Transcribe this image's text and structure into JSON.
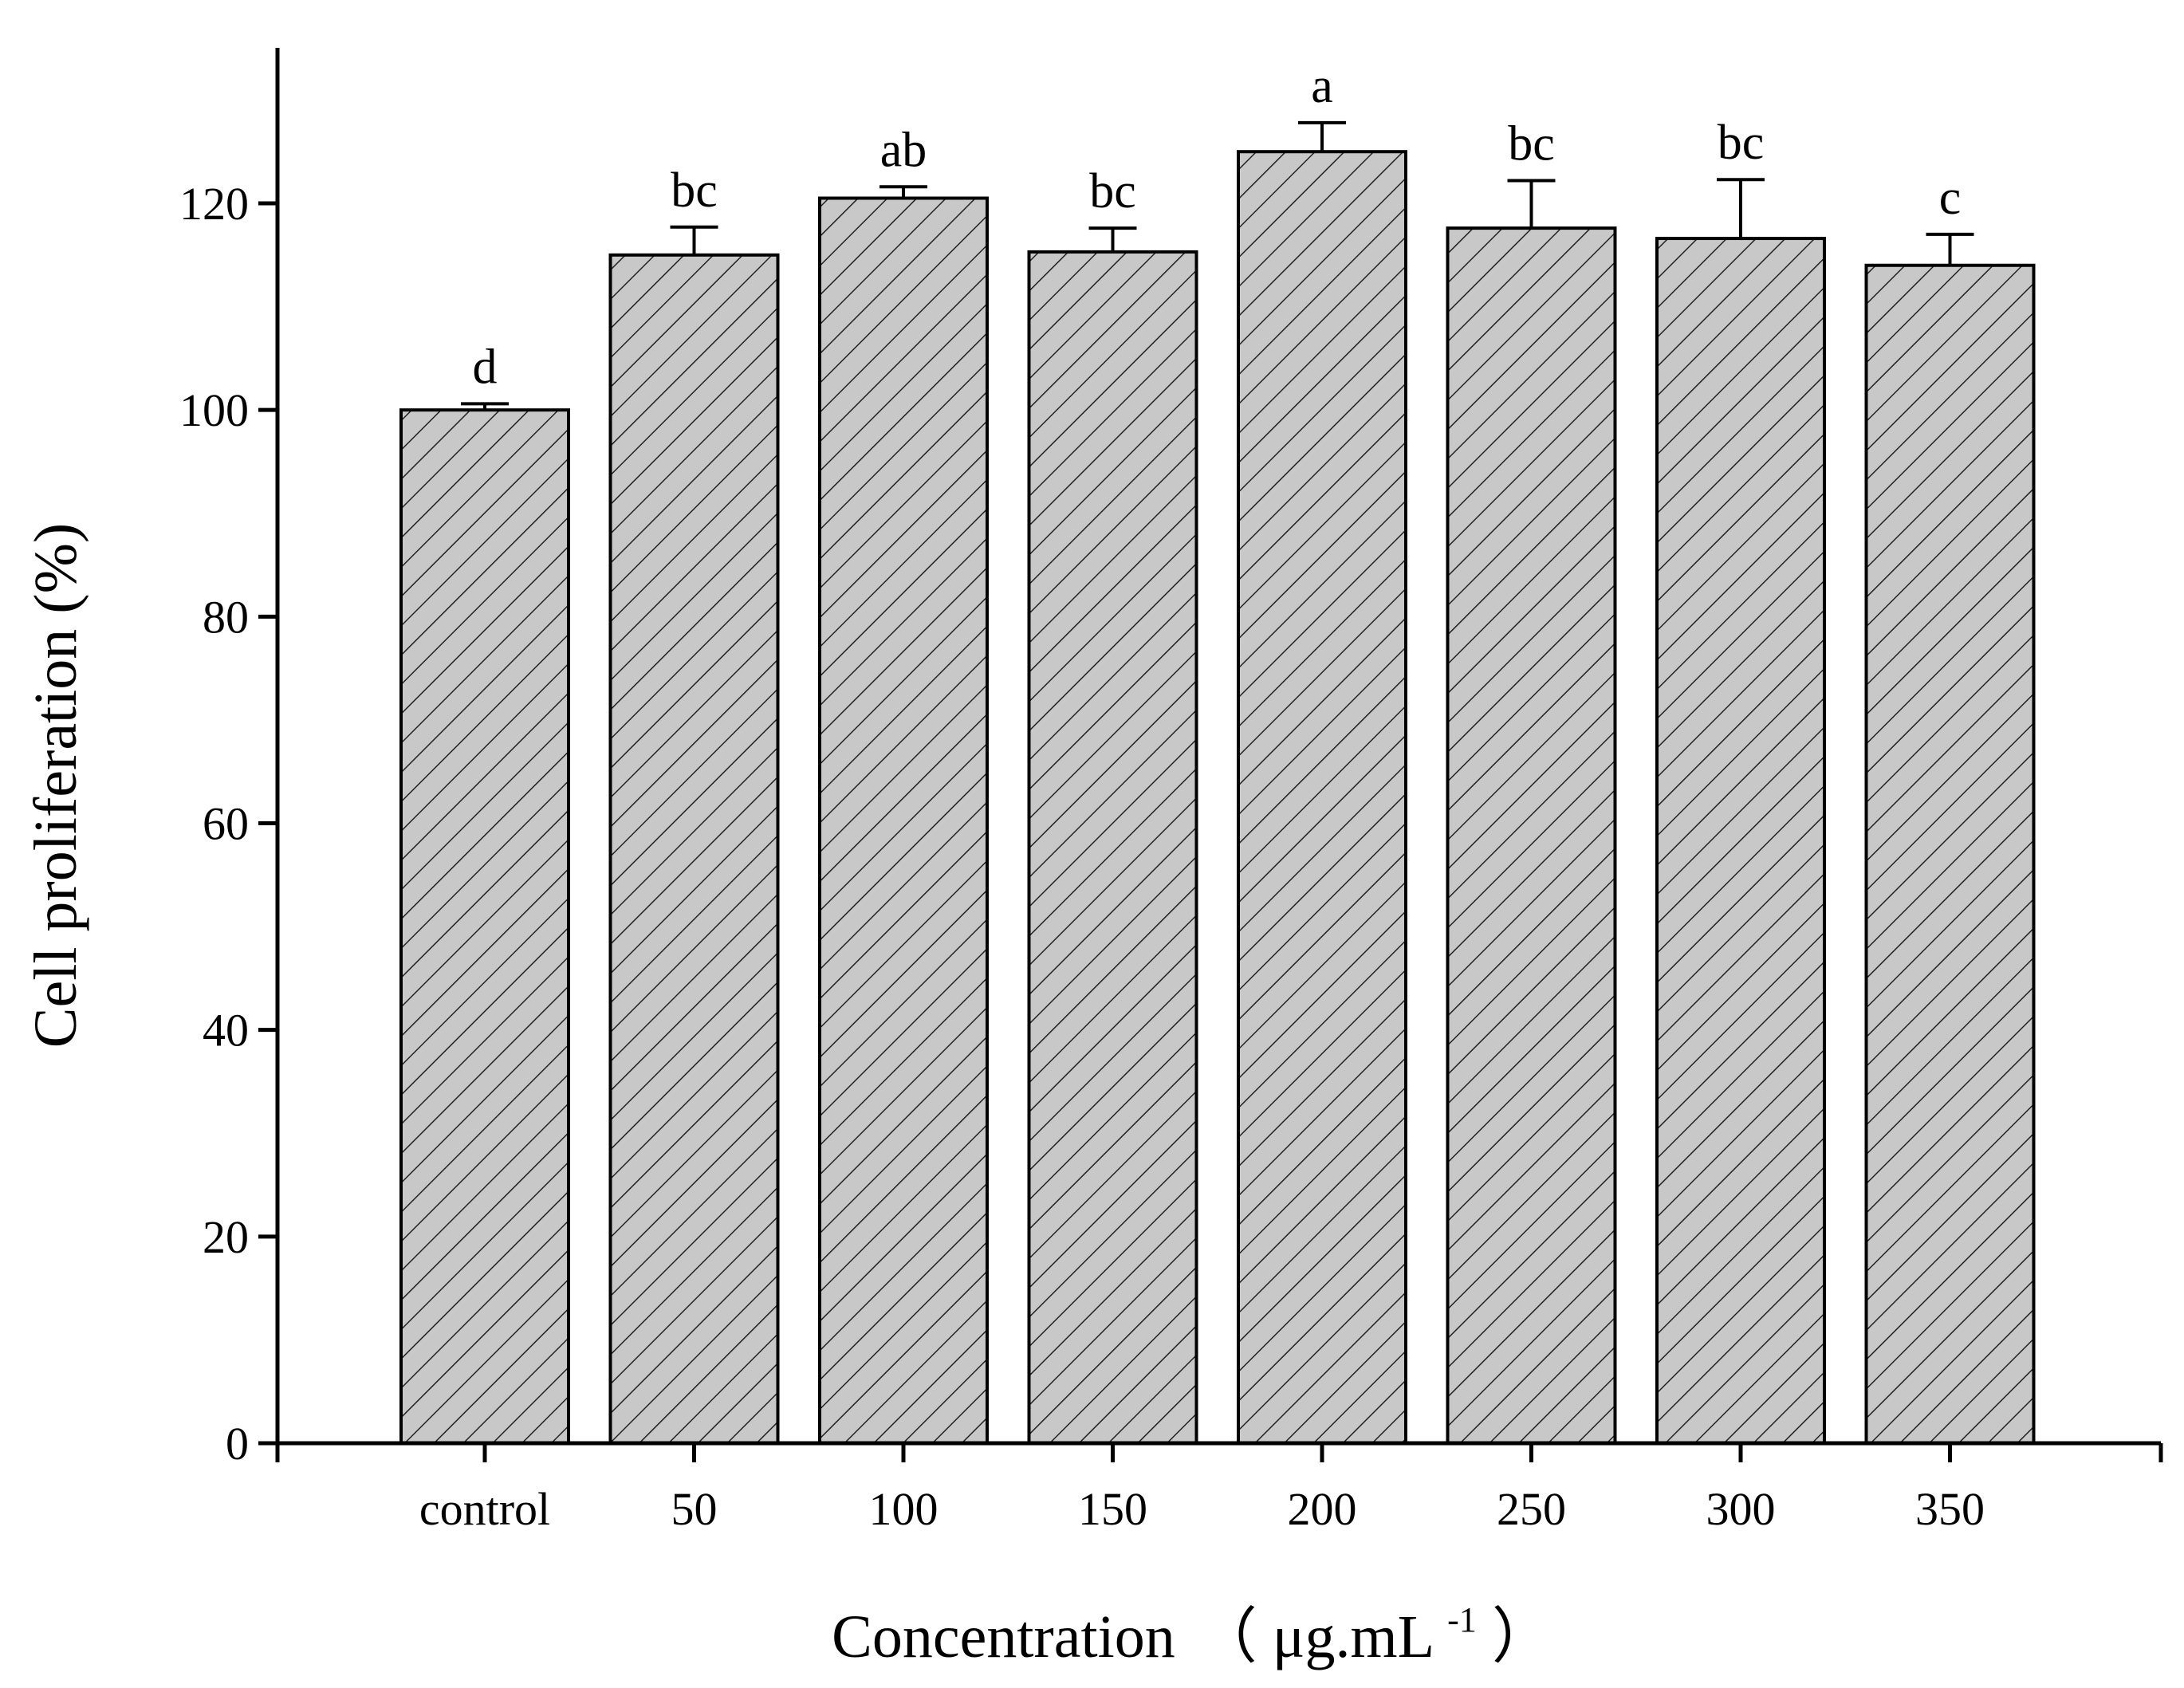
{
  "chart_data": {
    "type": "bar",
    "title": "",
    "xlabel": "Concentration",
    "xlabel_unit_open": "（",
    "xlabel_unit": "μg.mL",
    "xlabel_unit_sup": "-1",
    "xlabel_unit_close": "）",
    "ylabel": "Cell proliferation (%)",
    "ylim": [
      0,
      135
    ],
    "yticks": [
      0,
      20,
      40,
      60,
      80,
      100,
      120
    ],
    "categories": [
      "control",
      "50",
      "100",
      "150",
      "200",
      "250",
      "300",
      "350"
    ],
    "values": [
      100.0,
      115.0,
      120.5,
      115.3,
      125.0,
      117.6,
      116.6,
      114.0
    ],
    "errors": [
      0.6,
      2.7,
      1.1,
      2.3,
      2.8,
      4.6,
      5.7,
      3.0
    ],
    "significance": [
      "d",
      "bc",
      "ab",
      "bc",
      "a",
      "bc",
      "bc",
      "c"
    ],
    "grid": false,
    "bar_fill": "#c8c8c8",
    "hatch_color": "#222222"
  }
}
